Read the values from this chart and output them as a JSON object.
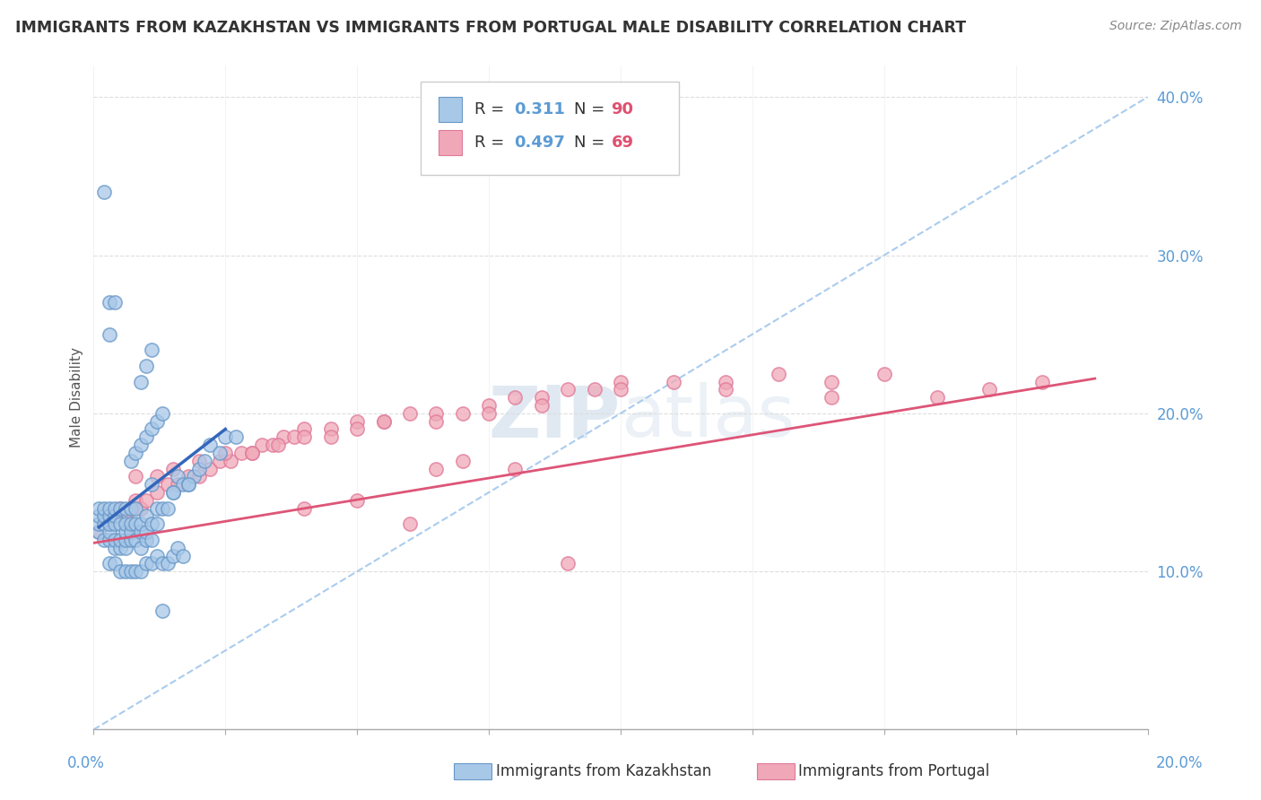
{
  "title": "IMMIGRANTS FROM KAZAKHSTAN VS IMMIGRANTS FROM PORTUGAL MALE DISABILITY CORRELATION CHART",
  "source": "Source: ZipAtlas.com",
  "ylabel": "Male Disability",
  "x_lim": [
    0.0,
    0.2
  ],
  "y_lim": [
    0.0,
    0.42
  ],
  "series1_color": "#a8c8e8",
  "series2_color": "#f0a8b8",
  "series1_edge": "#6898c8",
  "series2_edge": "#e07898",
  "line1_color": "#3366bb",
  "line2_color": "#dd5577",
  "ref_line_color": "#aaccee",
  "R1": 0.311,
  "N1": 90,
  "R2": 0.497,
  "N2": 69,
  "legend_label1": "Immigrants from Kazakhstan",
  "legend_label2": "Immigrants from Portugal",
  "watermark": "ZIPatlas",
  "kaz_x": [
    0.001,
    0.001,
    0.001,
    0.001,
    0.002,
    0.002,
    0.002,
    0.002,
    0.003,
    0.003,
    0.003,
    0.003,
    0.003,
    0.004,
    0.004,
    0.004,
    0.004,
    0.004,
    0.005,
    0.005,
    0.005,
    0.005,
    0.006,
    0.006,
    0.006,
    0.006,
    0.006,
    0.007,
    0.007,
    0.007,
    0.007,
    0.008,
    0.008,
    0.008,
    0.009,
    0.009,
    0.009,
    0.01,
    0.01,
    0.01,
    0.011,
    0.011,
    0.012,
    0.012,
    0.013,
    0.014,
    0.015,
    0.016,
    0.017,
    0.018,
    0.019,
    0.02,
    0.021,
    0.022,
    0.003,
    0.004,
    0.005,
    0.006,
    0.007,
    0.008,
    0.009,
    0.01,
    0.011,
    0.012,
    0.013,
    0.014,
    0.015,
    0.016,
    0.017,
    0.007,
    0.008,
    0.009,
    0.01,
    0.011,
    0.012,
    0.013,
    0.009,
    0.01,
    0.011,
    0.002,
    0.003,
    0.004,
    0.003,
    0.024,
    0.018,
    0.025,
    0.013,
    0.027,
    0.015,
    0.011
  ],
  "kaz_y": [
    0.125,
    0.13,
    0.135,
    0.14,
    0.12,
    0.13,
    0.135,
    0.14,
    0.12,
    0.125,
    0.13,
    0.135,
    0.14,
    0.115,
    0.12,
    0.13,
    0.135,
    0.14,
    0.115,
    0.12,
    0.13,
    0.14,
    0.115,
    0.12,
    0.125,
    0.13,
    0.14,
    0.12,
    0.125,
    0.13,
    0.14,
    0.12,
    0.13,
    0.14,
    0.115,
    0.125,
    0.13,
    0.12,
    0.125,
    0.135,
    0.12,
    0.13,
    0.13,
    0.14,
    0.14,
    0.14,
    0.15,
    0.16,
    0.155,
    0.155,
    0.16,
    0.165,
    0.17,
    0.18,
    0.105,
    0.105,
    0.1,
    0.1,
    0.1,
    0.1,
    0.1,
    0.105,
    0.105,
    0.11,
    0.105,
    0.105,
    0.11,
    0.115,
    0.11,
    0.17,
    0.175,
    0.18,
    0.185,
    0.19,
    0.195,
    0.2,
    0.22,
    0.23,
    0.24,
    0.34,
    0.27,
    0.27,
    0.25,
    0.175,
    0.155,
    0.185,
    0.075,
    0.185,
    0.15,
    0.155
  ],
  "port_x": [
    0.001,
    0.002,
    0.003,
    0.004,
    0.005,
    0.006,
    0.007,
    0.008,
    0.009,
    0.01,
    0.012,
    0.014,
    0.016,
    0.018,
    0.02,
    0.022,
    0.024,
    0.026,
    0.028,
    0.03,
    0.032,
    0.034,
    0.036,
    0.038,
    0.04,
    0.045,
    0.05,
    0.055,
    0.06,
    0.065,
    0.07,
    0.075,
    0.08,
    0.085,
    0.09,
    0.095,
    0.1,
    0.11,
    0.12,
    0.13,
    0.14,
    0.15,
    0.16,
    0.17,
    0.18,
    0.008,
    0.012,
    0.015,
    0.02,
    0.025,
    0.03,
    0.035,
    0.04,
    0.045,
    0.05,
    0.055,
    0.065,
    0.075,
    0.085,
    0.1,
    0.12,
    0.14,
    0.06,
    0.07,
    0.04,
    0.05,
    0.065,
    0.08,
    0.09
  ],
  "port_y": [
    0.125,
    0.13,
    0.13,
    0.135,
    0.14,
    0.135,
    0.14,
    0.145,
    0.14,
    0.145,
    0.15,
    0.155,
    0.155,
    0.16,
    0.16,
    0.165,
    0.17,
    0.17,
    0.175,
    0.175,
    0.18,
    0.18,
    0.185,
    0.185,
    0.19,
    0.19,
    0.195,
    0.195,
    0.2,
    0.2,
    0.2,
    0.205,
    0.21,
    0.21,
    0.215,
    0.215,
    0.22,
    0.22,
    0.22,
    0.225,
    0.22,
    0.225,
    0.21,
    0.215,
    0.22,
    0.16,
    0.16,
    0.165,
    0.17,
    0.175,
    0.175,
    0.18,
    0.185,
    0.185,
    0.19,
    0.195,
    0.195,
    0.2,
    0.205,
    0.215,
    0.215,
    0.21,
    0.13,
    0.17,
    0.14,
    0.145,
    0.165,
    0.165,
    0.105
  ],
  "kaz_line_x": [
    0.001,
    0.025
  ],
  "kaz_line_y": [
    0.128,
    0.19
  ],
  "port_line_x": [
    0.0,
    0.19
  ],
  "port_line_y": [
    0.118,
    0.222
  ],
  "ref_line_x": [
    0.0,
    0.2
  ],
  "ref_line_y": [
    0.0,
    0.4
  ],
  "y_ticks": [
    0.0,
    0.1,
    0.2,
    0.3,
    0.4
  ],
  "y_tick_labels": [
    "",
    "10.0%",
    "20.0%",
    "30.0%",
    "40.0%"
  ],
  "tick_color": "#5b9bd5",
  "title_color": "#333333",
  "title_fontsize": 12.5,
  "source_color": "#888888",
  "ylabel_color": "#555555",
  "watermark_color": "#d0dce8",
  "background_color": "#ffffff"
}
